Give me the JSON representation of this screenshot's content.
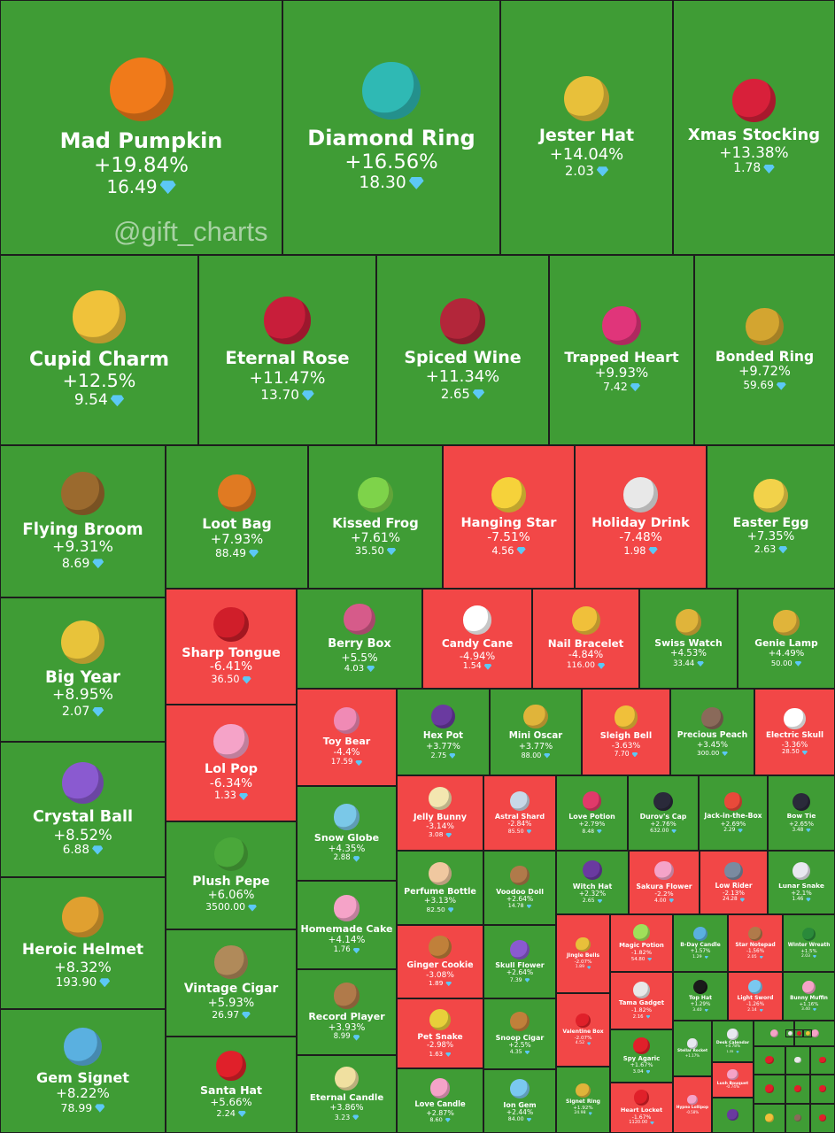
{
  "watermark": "@gift_charts",
  "currency_icon": "diamond-icon",
  "colors": {
    "gain": "#3f9c35",
    "loss": "#f24747",
    "border": "#1d1d1d",
    "currency": "#5cc8f5"
  },
  "chart_data": {
    "type": "treemap",
    "size_by": "price change",
    "items": [
      {
        "name": "Mad Pumpkin",
        "change": "+19.84%",
        "price": "16.49",
        "icon": "pumpkin-icon",
        "icon_color": "#f07a1a"
      },
      {
        "name": "Diamond Ring",
        "change": "+16.56%",
        "price": "18.30",
        "icon": "ring-box-icon",
        "icon_color": "#2fb9b4"
      },
      {
        "name": "Jester Hat",
        "change": "+14.04%",
        "price": "2.03",
        "icon": "jester-hat-icon",
        "icon_color": "#e8c03a"
      },
      {
        "name": "Xmas Stocking",
        "change": "+13.38%",
        "price": "1.78",
        "icon": "stocking-icon",
        "icon_color": "#d8203a"
      },
      {
        "name": "Cupid Charm",
        "change": "+12.5%",
        "price": "9.54",
        "icon": "heart-lock-icon",
        "icon_color": "#f0c23a"
      },
      {
        "name": "Eternal Rose",
        "change": "+11.47%",
        "price": "13.70",
        "icon": "rose-dome-icon",
        "icon_color": "#c81e3a"
      },
      {
        "name": "Spiced Wine",
        "change": "+11.34%",
        "price": "2.65",
        "icon": "wine-glass-icon",
        "icon_color": "#b3263a"
      },
      {
        "name": "Trapped Heart",
        "change": "+9.93%",
        "price": "7.42",
        "icon": "trapped-heart-icon",
        "icon_color": "#e0357a"
      },
      {
        "name": "Bonded Ring",
        "change": "+9.72%",
        "price": "59.69",
        "icon": "ring-icon",
        "icon_color": "#d3a530"
      },
      {
        "name": "Flying Broom",
        "change": "+9.31%",
        "price": "8.69",
        "icon": "broom-icon",
        "icon_color": "#9b6a2e"
      },
      {
        "name": "Loot Bag",
        "change": "+7.93%",
        "price": "88.49",
        "icon": "bag-icon",
        "icon_color": "#e07a22"
      },
      {
        "name": "Kissed Frog",
        "change": "+7.61%",
        "price": "35.50",
        "icon": "frog-icon",
        "icon_color": "#7ed34a"
      },
      {
        "name": "Hanging Star",
        "change": "-7.51%",
        "price": "4.56",
        "icon": "star-icon",
        "icon_color": "#f6d23a"
      },
      {
        "name": "Holiday Drink",
        "change": "-7.48%",
        "price": "1.98",
        "icon": "drink-icon",
        "icon_color": "#e8e8e8"
      },
      {
        "name": "Easter Egg",
        "change": "+7.35%",
        "price": "2.63",
        "icon": "egg-icon",
        "icon_color": "#f2d24a"
      },
      {
        "name": "Big Year",
        "change": "+8.95%",
        "price": "2.07",
        "icon": "calendar-2025-icon",
        "icon_color": "#e8c33a"
      },
      {
        "name": "Sharp Tongue",
        "change": "-6.41%",
        "price": "36.50",
        "icon": "lips-icon",
        "icon_color": "#d01e2a"
      },
      {
        "name": "Berry Box",
        "change": "+5.5%",
        "price": "4.03",
        "icon": "gift-box-icon",
        "icon_color": "#d65b8a"
      },
      {
        "name": "Candy Cane",
        "change": "-4.94%",
        "price": "1.54",
        "icon": "candy-cane-icon",
        "icon_color": "#ffffff"
      },
      {
        "name": "Nail Bracelet",
        "change": "-4.84%",
        "price": "116.00",
        "icon": "bracelet-icon",
        "icon_color": "#f0c03a"
      },
      {
        "name": "Swiss Watch",
        "change": "+4.53%",
        "price": "33.44",
        "icon": "watch-icon",
        "icon_color": "#e0b43a"
      },
      {
        "name": "Genie Lamp",
        "change": "+4.49%",
        "price": "50.00",
        "icon": "lamp-icon",
        "icon_color": "#e0b43a"
      },
      {
        "name": "Crystal Ball",
        "change": "+8.52%",
        "price": "6.88",
        "icon": "crystal-ball-icon",
        "icon_color": "#8a5ad0"
      },
      {
        "name": "Lol Pop",
        "change": "-6.34%",
        "price": "1.33",
        "icon": "lollipop-icon",
        "icon_color": "#f5a3c8"
      },
      {
        "name": "Toy Bear",
        "change": "-4.4%",
        "price": "17.59",
        "icon": "teddy-bear-icon",
        "icon_color": "#f08ab5"
      },
      {
        "name": "Hex Pot",
        "change": "+3.77%",
        "price": "2.75",
        "icon": "cauldron-icon",
        "icon_color": "#6a3aa0"
      },
      {
        "name": "Mini Oscar",
        "change": "+3.77%",
        "price": "88.00",
        "icon": "trophy-icon",
        "icon_color": "#e0b43a"
      },
      {
        "name": "Sleigh Bell",
        "change": "-3.63%",
        "price": "7.70",
        "icon": "bell-icon",
        "icon_color": "#f0c03a"
      },
      {
        "name": "Precious Peach",
        "change": "+3.45%",
        "price": "300.00",
        "icon": "peach-icon",
        "icon_color": "#8a6a5a"
      },
      {
        "name": "Electric Skull",
        "change": "-3.36%",
        "price": "28.50",
        "icon": "skull-icon",
        "icon_color": "#ffffff"
      },
      {
        "name": "Heroic Helmet",
        "change": "+8.32%",
        "price": "193.90",
        "icon": "helmet-icon",
        "icon_color": "#e0a030"
      },
      {
        "name": "Plush Pepe",
        "change": "+6.06%",
        "price": "3500.00",
        "icon": "pepe-icon",
        "icon_color": "#4aa83a"
      },
      {
        "name": "Snow Globe",
        "change": "+4.35%",
        "price": "2.88",
        "icon": "snow-globe-icon",
        "icon_color": "#7ac8e8"
      },
      {
        "name": "Jelly Bunny",
        "change": "-3.14%",
        "price": "3.08",
        "icon": "bunny-icon",
        "icon_color": "#f3e6b0"
      },
      {
        "name": "Astral Shard",
        "change": "-2.84%",
        "price": "85.50",
        "icon": "shard-icon",
        "icon_color": "#c8d8e8"
      },
      {
        "name": "Love Potion",
        "change": "+2.79%",
        "price": "8.48",
        "icon": "potion-icon",
        "icon_color": "#e03a6a"
      },
      {
        "name": "Durov's Cap",
        "change": "+2.76%",
        "price": "632.00",
        "icon": "cap-icon",
        "icon_color": "#2a2a3a"
      },
      {
        "name": "Jack-in-the-Box",
        "change": "+2.69%",
        "price": "2.29",
        "icon": "jack-box-icon",
        "icon_color": "#e84a3a"
      },
      {
        "name": "Bow Tie",
        "change": "+2.65%",
        "price": "3.48",
        "icon": "bow-tie-icon",
        "icon_color": "#2a2a3a"
      },
      {
        "name": "Perfume Bottle",
        "change": "+3.13%",
        "price": "82.50",
        "icon": "perfume-icon",
        "icon_color": "#f0c8a0"
      },
      {
        "name": "Voodoo Doll",
        "change": "+2.64%",
        "price": "14.78",
        "icon": "voodoo-doll-icon",
        "icon_color": "#b07a4a"
      },
      {
        "name": "Witch Hat",
        "change": "+2.32%",
        "price": "2.65",
        "icon": "witch-hat-icon",
        "icon_color": "#6a3aa0"
      },
      {
        "name": "Sakura Flower",
        "change": "-2.2%",
        "price": "4.00",
        "icon": "sakura-icon",
        "icon_color": "#f5a3c8"
      },
      {
        "name": "Low Rider",
        "change": "-2.13%",
        "price": "24.28",
        "icon": "car-icon",
        "icon_color": "#7a8aa0"
      },
      {
        "name": "Lunar Snake",
        "change": "+2.1%",
        "price": "1.46",
        "icon": "snake-icon",
        "icon_color": "#e8e8f0"
      },
      {
        "name": "Gem Signet",
        "change": "+8.22%",
        "price": "78.99",
        "icon": "signet-ring-icon",
        "icon_color": "#5ab0e0"
      },
      {
        "name": "Vintage Cigar",
        "change": "+5.93%",
        "price": "26.97",
        "icon": "cigar-icon",
        "icon_color": "#b08a5a"
      },
      {
        "name": "Santa Hat",
        "change": "+5.66%",
        "price": "2.24",
        "icon": "santa-hat-icon",
        "icon_color": "#e0202a"
      },
      {
        "name": "Homemade Cake",
        "change": "+4.14%",
        "price": "1.76",
        "icon": "cake-icon",
        "icon_color": "#f5a3c8"
      },
      {
        "name": "Record Player",
        "change": "+3.93%",
        "price": "8.99",
        "icon": "record-player-icon",
        "icon_color": "#b07a4a"
      },
      {
        "name": "Eternal Candle",
        "change": "+3.86%",
        "price": "3.23",
        "icon": "candle-icon",
        "icon_color": "#f0e0a0"
      },
      {
        "name": "Ginger Cookie",
        "change": "-3.08%",
        "price": "1.89",
        "icon": "cookie-icon",
        "icon_color": "#c0803a"
      },
      {
        "name": "Skull Flower",
        "change": "+2.64%",
        "price": "7.39",
        "icon": "flower-icon",
        "icon_color": "#8a5ad0"
      },
      {
        "name": "Pet Snake",
        "change": "-2.98%",
        "price": "1.63",
        "icon": "pet-snake-icon",
        "icon_color": "#e8d03a"
      },
      {
        "name": "Snoop Cigar",
        "change": "+2.5%",
        "price": "4.35",
        "icon": "snoop-cigar-icon",
        "icon_color": "#c0803a"
      },
      {
        "name": "Love Candle",
        "change": "+2.87%",
        "price": "8.60",
        "icon": "love-candle-icon",
        "icon_color": "#f5a3c8"
      },
      {
        "name": "Ion Gem",
        "change": "+2.44%",
        "price": "84.00",
        "icon": "ion-gem-icon",
        "icon_color": "#7ac8f0"
      },
      {
        "name": "Jingle Bells",
        "change": "-2.07%",
        "price": "1.89",
        "icon": "jingle-bells-icon",
        "icon_color": "#e8c03a"
      },
      {
        "name": "Magic Potion",
        "change": "-1.82%",
        "price": "54.80",
        "icon": "magic-potion-icon",
        "icon_color": "#a0e05a"
      },
      {
        "name": "B-Day Candle",
        "change": "+1.57%",
        "price": "1.29",
        "icon": "bday-candle-icon",
        "icon_color": "#5ab0e0"
      },
      {
        "name": "Star Notepad",
        "change": "-1.56%",
        "price": "2.05",
        "icon": "notepad-icon",
        "icon_color": "#b07a4a"
      },
      {
        "name": "Winter Wreath",
        "change": "+1.5%",
        "price": "2.03",
        "icon": "wreath-icon",
        "icon_color": "#2a8a3a"
      },
      {
        "name": "Tama Gadget",
        "change": "-1.82%",
        "price": "2.16",
        "icon": "tamagotchi-icon",
        "icon_color": "#e8e8e8"
      },
      {
        "name": "Top Hat",
        "change": "+1.29%",
        "price": "3.40",
        "icon": "top-hat-icon",
        "icon_color": "#1a1a1a"
      },
      {
        "name": "Light Sword",
        "change": "-1.26%",
        "price": "2.14",
        "icon": "light-sword-icon",
        "icon_color": "#7ac8f0"
      },
      {
        "name": "Bunny Muffin",
        "change": "+1.16%",
        "price": "3.40",
        "icon": "muffin-icon",
        "icon_color": "#f5a3c8"
      },
      {
        "name": "Valentine Box",
        "change": "-2.07%",
        "price": "4.52",
        "icon": "valentine-box-icon",
        "icon_color": "#e0202a"
      },
      {
        "name": "Spy Agaric",
        "change": "+1.67%",
        "price": "3.04",
        "icon": "mushroom-icon",
        "icon_color": "#e0202a"
      },
      {
        "name": "Stellar Rocket",
        "change": "+1.17%",
        "price": "",
        "icon": "rocket-icon",
        "icon_color": "#e8e8f0"
      },
      {
        "name": "Desk Calendar",
        "change": "+0.78%",
        "price": "1.35",
        "icon": "desk-calendar-icon",
        "icon_color": "#e8e8f0"
      },
      {
        "name": "Signet Ring",
        "change": "+1.92%",
        "price": "24.98",
        "icon": "signet-icon",
        "icon_color": "#e0b43a"
      },
      {
        "name": "Heart Locket",
        "change": "-1.67%",
        "price": "1120.00",
        "icon": "locket-icon",
        "icon_color": "#e0202a"
      },
      {
        "name": "Hypno Lollipop",
        "change": "-0.58%",
        "price": "",
        "icon": "hypno-lollipop-icon",
        "icon_color": "#f5a3c8"
      },
      {
        "name": "Lush Bouquet",
        "change": "-0.74%",
        "price": "",
        "icon": "bouquet-icon",
        "icon_color": "#f5a3c8"
      },
      {
        "name": "",
        "change": "",
        "price": "",
        "icon": "gift-icon",
        "icon_color": "#f5a3c8"
      },
      {
        "name": "",
        "change": "",
        "price": "",
        "icon": "gift-icon",
        "icon_color": "#f5a3c8"
      },
      {
        "name": "",
        "change": "",
        "price": "",
        "icon": "gift-icon",
        "icon_color": "#e0202a"
      },
      {
        "name": "",
        "change": "",
        "price": "",
        "icon": "gift-icon",
        "icon_color": "#e8e8e8"
      },
      {
        "name": "",
        "change": "",
        "price": "",
        "icon": "gift-icon",
        "icon_color": "#e0202a"
      },
      {
        "name": "",
        "change": "",
        "price": "",
        "icon": "gift-icon",
        "icon_color": "#6a3aa0"
      },
      {
        "name": "",
        "change": "",
        "price": "",
        "icon": "gift-icon",
        "icon_color": "#e0202a"
      },
      {
        "name": "",
        "change": "",
        "price": "",
        "icon": "gift-icon",
        "icon_color": "#e0202a"
      },
      {
        "name": "",
        "change": "",
        "price": "",
        "icon": "gift-icon",
        "icon_color": "#e0202a"
      },
      {
        "name": "",
        "change": "",
        "price": "",
        "icon": "gift-icon",
        "icon_color": "#f0c03a"
      },
      {
        "name": "",
        "change": "",
        "price": "",
        "icon": "gift-icon",
        "icon_color": "#8a6a5a"
      },
      {
        "name": "",
        "change": "",
        "price": "",
        "icon": "gift-icon",
        "icon_color": "#e0202a"
      },
      {
        "name": "",
        "change": "",
        "price": "",
        "icon": "gift-icon",
        "icon_color": "#e8e8e8"
      },
      {
        "name": "",
        "change": "",
        "price": "",
        "icon": "gift-icon",
        "icon_color": "#e0202a"
      },
      {
        "name": "",
        "change": "",
        "price": "",
        "icon": "gift-icon",
        "icon_color": "#f0c03a"
      },
      {
        "name": "",
        "change": "",
        "price": "",
        "icon": "gift-icon",
        "icon_color": "#8a6a5a"
      },
      {
        "name": "",
        "change": "",
        "price": "",
        "icon": "gift-icon",
        "icon_color": "#e0202a"
      },
      {
        "name": "",
        "change": "",
        "price": "",
        "icon": "gift-icon",
        "icon_color": "#e0202a"
      },
      {
        "name": "",
        "change": "",
        "price": "",
        "icon": "gift-icon",
        "icon_color": "#6a3aa0"
      }
    ]
  }
}
